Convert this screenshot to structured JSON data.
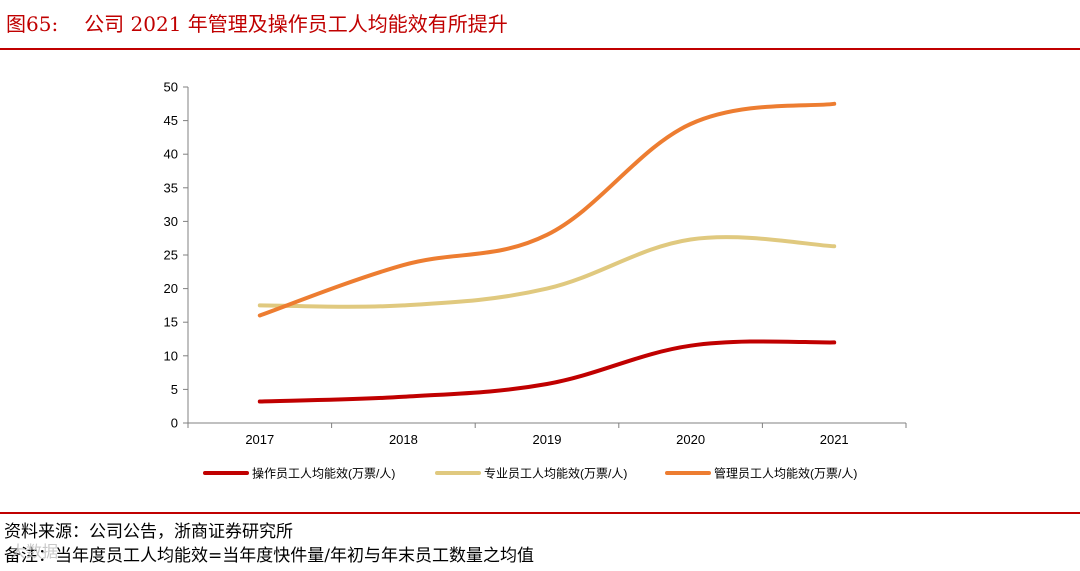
{
  "figure": {
    "number": "图65:",
    "title": "公司 2021 年管理及操作员工人均能效有所提升"
  },
  "footer": {
    "source": "资料来源：公司公告，浙商证券研究所",
    "note": "备注：当年度员工人均能效=当年度快件量/年初与年末员工数量之均值",
    "watermark": "大数据"
  },
  "chart_data": {
    "type": "line",
    "title": "",
    "xlabel": "",
    "ylabel": "",
    "categories": [
      "2017",
      "2018",
      "2019",
      "2020",
      "2021"
    ],
    "ylim": [
      0,
      50
    ],
    "yticks": [
      0,
      5,
      10,
      15,
      20,
      25,
      30,
      35,
      40,
      45,
      50
    ],
    "grid": false,
    "legend_position": "bottom",
    "series": [
      {
        "name": "操作员工人均能效(万票/人)",
        "color": "#c00000",
        "values": [
          3.2,
          3.9,
          5.8,
          11.5,
          12.0
        ]
      },
      {
        "name": "专业员工人均能效(万票/人)",
        "color": "#e0c97f",
        "values": [
          17.5,
          17.5,
          20.0,
          27.3,
          26.3
        ]
      },
      {
        "name": "管理员工人均能效(万票/人)",
        "color": "#ed7d31",
        "values": [
          16.0,
          23.5,
          28.0,
          44.5,
          47.5
        ]
      }
    ]
  }
}
